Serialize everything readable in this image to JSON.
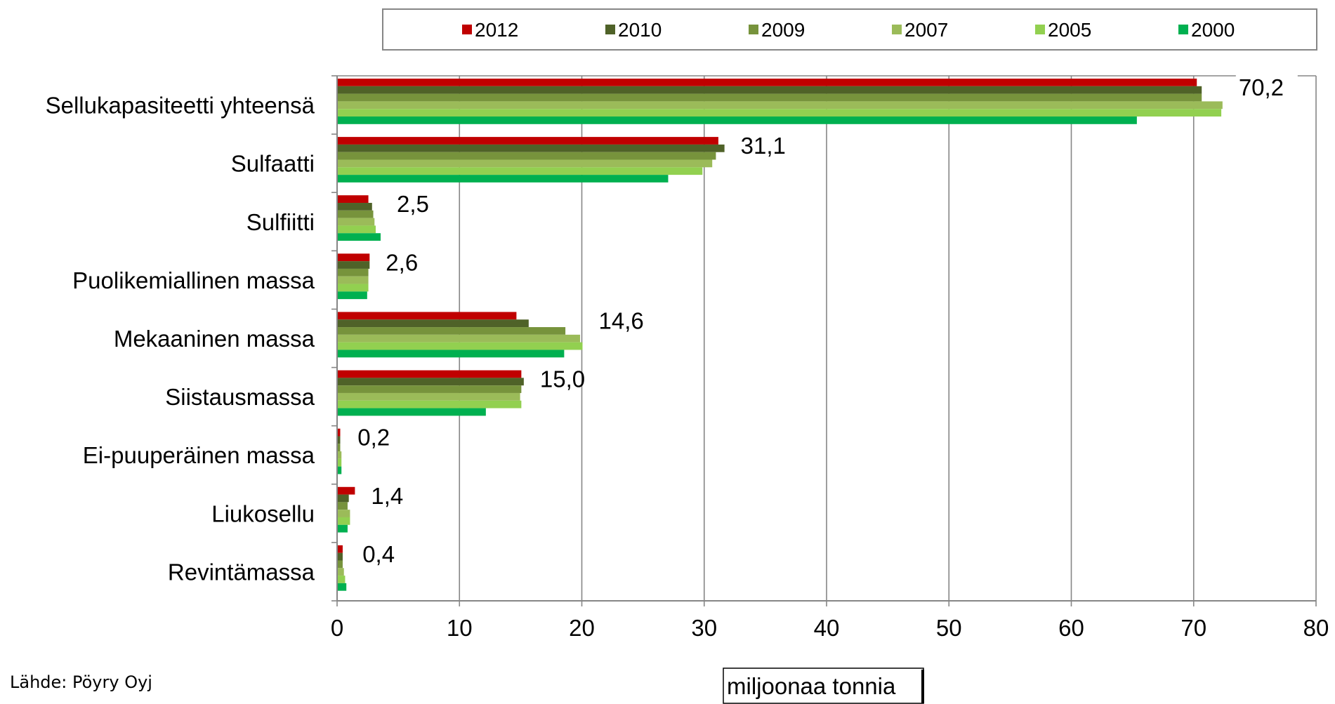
{
  "chart_data": {
    "type": "bar",
    "orientation": "horizontal",
    "title": "",
    "xlabel": "miljoonaa tonnia",
    "ylabel": "",
    "xlim": [
      0,
      80
    ],
    "x_ticks": [
      0,
      10,
      20,
      30,
      40,
      50,
      60,
      70,
      80
    ],
    "grid": "vertical major gridlines",
    "legend_position": "top",
    "categories": [
      "Sellukapasiteetti yhteensä",
      "Sulfaatti",
      "Sulfiitti",
      "Puolikemiallinen massa",
      "Mekaaninen massa",
      "Siistausmassa",
      "Ei-puuperäinen massa",
      "Liukosellu",
      "Revintämassa"
    ],
    "series": [
      {
        "name": "2012",
        "color": "#C00000",
        "values": [
          70.2,
          31.1,
          2.5,
          2.6,
          14.6,
          15.0,
          0.2,
          1.4,
          0.4
        ]
      },
      {
        "name": "2010",
        "color": "#4F6228",
        "values": [
          70.6,
          31.6,
          2.8,
          2.6,
          15.6,
          15.2,
          0.2,
          0.9,
          0.4
        ]
      },
      {
        "name": "2009",
        "color": "#77933C",
        "values": [
          70.6,
          30.9,
          2.9,
          2.5,
          18.6,
          15.0,
          0.2,
          0.8,
          0.4
        ]
      },
      {
        "name": "2007",
        "color": "#9BBB59",
        "values": [
          72.3,
          30.6,
          3.0,
          2.5,
          19.8,
          14.9,
          0.3,
          1.0,
          0.5
        ]
      },
      {
        "name": "2005",
        "color": "#92D050",
        "values": [
          72.2,
          29.8,
          3.1,
          2.5,
          20.0,
          15.0,
          0.3,
          1.0,
          0.6
        ]
      },
      {
        "name": "2000",
        "color": "#00B050",
        "values": [
          65.3,
          27.0,
          3.5,
          2.4,
          18.5,
          12.1,
          0.3,
          0.8,
          0.7
        ]
      }
    ],
    "data_labels": [
      "70,2",
      "31,1",
      "2,5",
      "2,6",
      "14,6",
      "15,0",
      "0,2",
      "1,4",
      "0,4"
    ]
  },
  "source_note": "Lähde: Pöyry Oyj"
}
